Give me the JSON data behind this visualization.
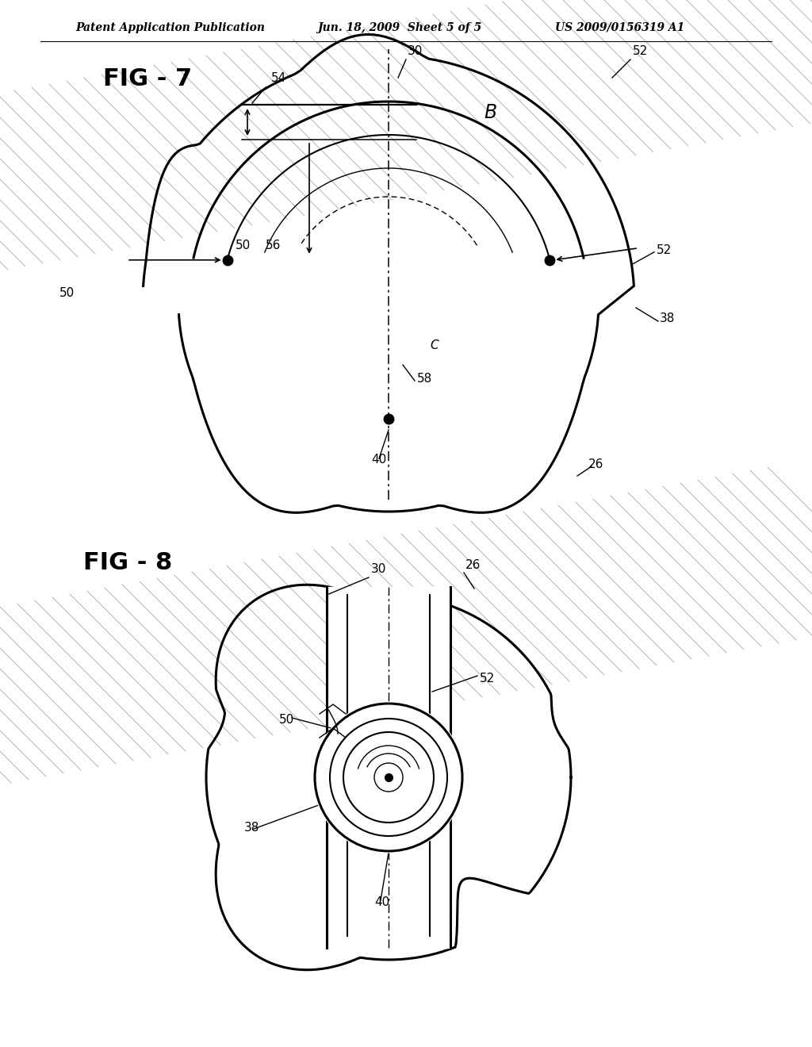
{
  "header_left": "Patent Application Publication",
  "header_mid": "Jun. 18, 2009  Sheet 5 of 5",
  "header_right": "US 2009/0156319 A1",
  "fig7_label": "FIG - 7",
  "fig8_label": "FIG - 8",
  "bg_color": "#ffffff",
  "line_color": "#000000",
  "hatch_color": "#888888"
}
